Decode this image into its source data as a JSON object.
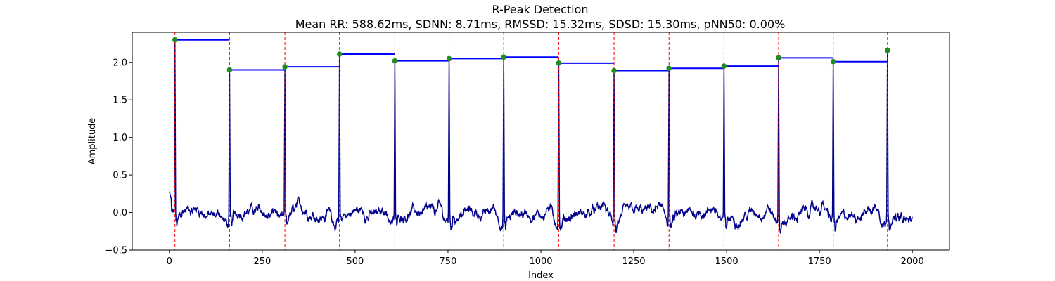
{
  "chart_data": {
    "type": "line",
    "title": "R-Peak Detection",
    "subtitle": "Mean RR: 588.62ms, SDNN: 8.71ms, RMSSD: 15.32ms, SDSD: 15.30ms, pNN50: 0.00%",
    "xlabel": "Index",
    "ylabel": "Amplitude",
    "xlim": [
      -100,
      2100
    ],
    "ylim": [
      -0.5,
      2.4
    ],
    "xticks": [
      0,
      250,
      500,
      750,
      1000,
      1250,
      1500,
      1750,
      2000
    ],
    "yticks": [
      -0.5,
      0.0,
      0.5,
      1.0,
      1.5,
      2.0
    ],
    "grid": false,
    "colors": {
      "signal": "#00008b",
      "peak_marker": "#228b22",
      "peak_line": "#ff0000",
      "rr_segment": "#0000ff"
    },
    "signal": {
      "x_start": 0,
      "x_end": 2000,
      "baseline": -0.05
    },
    "peaks": [
      {
        "x": 15,
        "y": 2.3
      },
      {
        "x": 162,
        "y": 1.9
      },
      {
        "x": 311,
        "y": 1.94
      },
      {
        "x": 458,
        "y": 2.11
      },
      {
        "x": 607,
        "y": 2.02
      },
      {
        "x": 753,
        "y": 2.05
      },
      {
        "x": 900,
        "y": 2.07
      },
      {
        "x": 1048,
        "y": 1.99
      },
      {
        "x": 1197,
        "y": 1.89
      },
      {
        "x": 1345,
        "y": 1.92
      },
      {
        "x": 1493,
        "y": 1.95
      },
      {
        "x": 1640,
        "y": 2.06
      },
      {
        "x": 1787,
        "y": 2.01
      },
      {
        "x": 1933,
        "y": 2.16
      }
    ]
  }
}
